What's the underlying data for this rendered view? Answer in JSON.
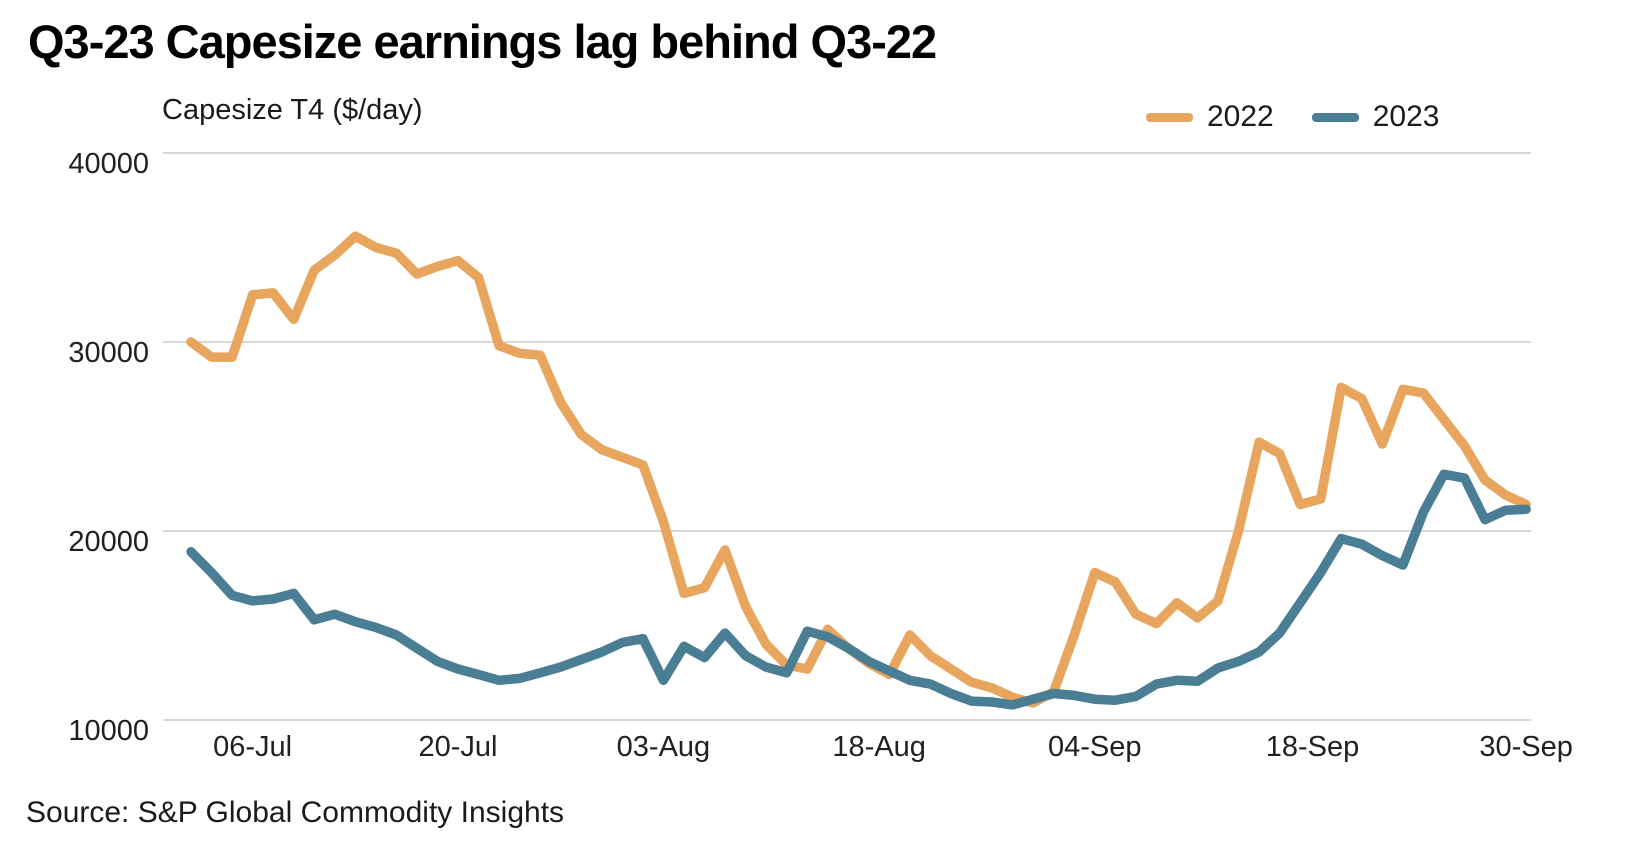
{
  "header": {
    "title": "Q3-23 Capesize earnings lag behind Q3-22"
  },
  "chart": {
    "subtitle": "Capesize T4  ($/day)",
    "source": "Source: S&P Global Commodity Insights"
  },
  "legend": {
    "items": [
      {
        "label": "2022",
        "color": "#E8A55D"
      },
      {
        "label": "2023",
        "color": "#4A7E94"
      }
    ]
  },
  "colors": {
    "series_2022": "#E8A55D",
    "series_2023": "#4A7E94",
    "gridline": "#D8D8D8",
    "axis_text": "#212121",
    "background": "#FFFFFF"
  },
  "chart_data": {
    "type": "line",
    "title": "Q3-23 Capesize earnings lag behind Q3-22",
    "ylabel": "Capesize T4 ($/day)",
    "xlabel": "",
    "ylim": [
      10000,
      40000
    ],
    "yticks": [
      40000,
      30000,
      20000,
      10000
    ],
    "grid": "horizontal",
    "legend_position": "top-right",
    "x_unit": "business days, 01-Jul through 30-Sep (66 points per series)",
    "xticks": [
      {
        "label": "06-Jul",
        "i": 3
      },
      {
        "label": "20-Jul",
        "i": 13
      },
      {
        "label": "03-Aug",
        "i": 23
      },
      {
        "label": "18-Aug",
        "i": 33.5
      },
      {
        "label": "04-Sep",
        "i": 44
      },
      {
        "label": "18-Sep",
        "i": 54.6
      },
      {
        "label": "30-Sep",
        "i": 65
      }
    ],
    "series": [
      {
        "name": "2022",
        "color": "#E8A55D",
        "values": [
          30000,
          29200,
          29200,
          32500,
          32600,
          31200,
          33800,
          34600,
          35600,
          35000,
          34700,
          33600,
          34000,
          34300,
          33400,
          29800,
          29400,
          29300,
          26800,
          25100,
          24300,
          23900,
          23500,
          20500,
          16700,
          17000,
          19000,
          16000,
          14000,
          12900,
          12700,
          14800,
          13800,
          13000,
          12400,
          14500,
          13400,
          12700,
          12000,
          11700,
          11200,
          10900,
          11500,
          14500,
          17800,
          17300,
          15600,
          15100,
          16200,
          15400,
          16300,
          20000,
          24700,
          24100,
          21400,
          21700,
          27600,
          27000,
          24600,
          27500,
          27300,
          25900,
          24500,
          22700,
          21900,
          21400
        ]
      },
      {
        "name": "2023",
        "color": "#4A7E94",
        "values": [
          18900,
          17800,
          16600,
          16300,
          16400,
          16700,
          15300,
          15600,
          15200,
          14900,
          14500,
          13800,
          13100,
          12700,
          12400,
          12100,
          12200,
          12500,
          12800,
          13200,
          13600,
          14100,
          14300,
          12100,
          13900,
          13300,
          14600,
          13400,
          12800,
          12500,
          14700,
          14400,
          13800,
          13100,
          12600,
          12100,
          11900,
          11400,
          11000,
          10950,
          10800,
          11100,
          11400,
          11300,
          11100,
          11050,
          11250,
          11900,
          12100,
          12050,
          12750,
          13100,
          13600,
          14600,
          16200,
          17800,
          19600,
          19300,
          18700,
          18200,
          21000,
          23000,
          22800,
          20600,
          21100,
          21150
        ]
      }
    ]
  }
}
